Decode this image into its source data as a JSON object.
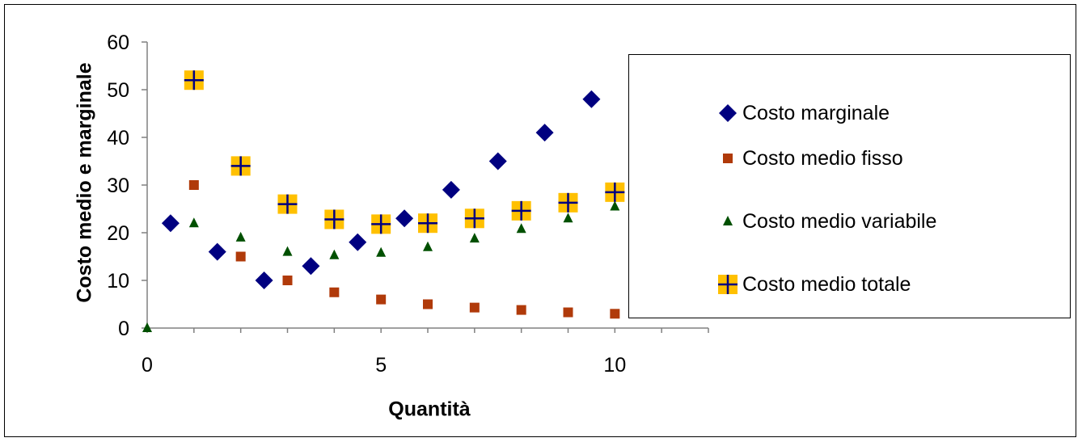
{
  "chart_data": {
    "type": "scatter",
    "xlabel": "Quantità",
    "ylabel": "Costo medio e marginale",
    "xlim": [
      0,
      12
    ],
    "ylim": [
      0,
      60
    ],
    "x_ticks": [
      "0",
      "5",
      "10"
    ],
    "y_ticks": [
      "0",
      "10",
      "20",
      "30",
      "40",
      "50",
      "60"
    ],
    "grid": false,
    "legend_position": "right",
    "series": [
      {
        "name": "Costo marginale",
        "marker": "diamond",
        "color": "#000080",
        "points": [
          [
            0.5,
            22
          ],
          [
            1.5,
            16
          ],
          [
            2.5,
            10
          ],
          [
            3.5,
            13
          ],
          [
            4.5,
            18
          ],
          [
            5.5,
            23
          ],
          [
            6.5,
            29
          ],
          [
            7.5,
            35
          ],
          [
            8.5,
            41
          ],
          [
            9.5,
            48
          ]
        ]
      },
      {
        "name": "Costo medio fisso",
        "marker": "square",
        "color": "#B03A0A",
        "points": [
          [
            1,
            30
          ],
          [
            2,
            15
          ],
          [
            3,
            10
          ],
          [
            4,
            7.5
          ],
          [
            5,
            6
          ],
          [
            6,
            5
          ],
          [
            7,
            4.3
          ],
          [
            8,
            3.8
          ],
          [
            9,
            3.3
          ],
          [
            10,
            3
          ]
        ]
      },
      {
        "name": "Costo medio variabile",
        "marker": "triangle",
        "color": "#005000",
        "points": [
          [
            0,
            0
          ],
          [
            1,
            22
          ],
          [
            2,
            19
          ],
          [
            3,
            16
          ],
          [
            4,
            15.3
          ],
          [
            5,
            15.8
          ],
          [
            6,
            17
          ],
          [
            7,
            18.8
          ],
          [
            8,
            20.8
          ],
          [
            9,
            23
          ],
          [
            10,
            25.5
          ]
        ]
      },
      {
        "name": "Costo medio totale",
        "marker": "plus-square",
        "color": "#FFC000",
        "plus_color": "#000080",
        "points": [
          [
            1,
            52
          ],
          [
            2,
            34
          ],
          [
            3,
            26
          ],
          [
            4,
            22.8
          ],
          [
            5,
            21.8
          ],
          [
            6,
            22
          ],
          [
            7,
            23
          ],
          [
            8,
            24.6
          ],
          [
            9,
            26.3
          ],
          [
            10,
            28.5
          ]
        ]
      }
    ]
  }
}
